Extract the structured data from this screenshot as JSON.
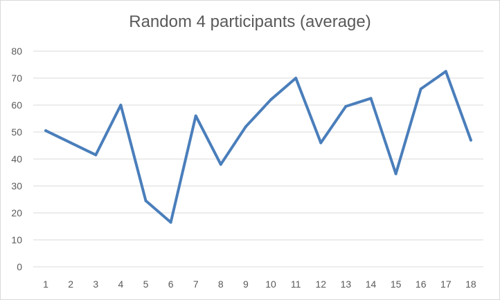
{
  "chart_data": {
    "type": "line",
    "title": "Random 4 participants (average)",
    "xlabel": "",
    "ylabel": "",
    "x": [
      "1",
      "2",
      "3",
      "4",
      "5",
      "6",
      "7",
      "8",
      "9",
      "10",
      "11",
      "12",
      "13",
      "14",
      "15",
      "16",
      "17",
      "18"
    ],
    "series": [
      {
        "values": [
          50.5,
          46,
          41.5,
          60,
          24.5,
          16.5,
          56,
          38,
          52,
          62,
          70,
          46,
          59.5,
          62.5,
          34.5,
          66,
          72.5,
          47
        ]
      }
    ],
    "ylim": [
      0,
      80
    ],
    "yticks": [
      0,
      10,
      20,
      30,
      40,
      50,
      60,
      70,
      80
    ],
    "grid": true,
    "legend": "none",
    "colors": {
      "line": "#4a7ebb",
      "grid": "#d9d9d9",
      "text": "#595959"
    }
  }
}
